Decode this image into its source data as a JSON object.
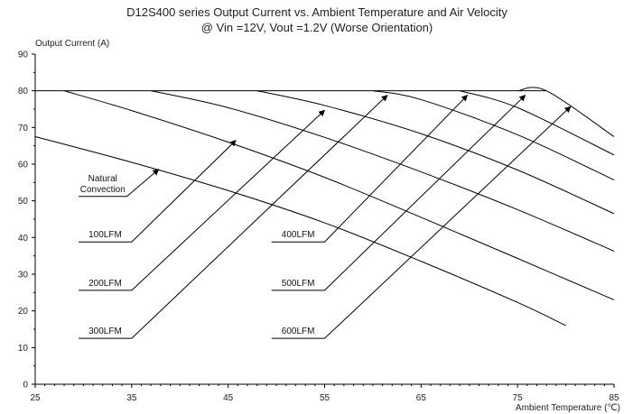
{
  "chart_data": {
    "type": "line",
    "title": "D12S400 series Output Current vs. Ambient Temperature and Air Velocity",
    "subtitle": "@ Vin =12V, Vout =1.2V (Worse Orientation)",
    "ylabel": "Output Current (A)",
    "xlabel": "Ambient Temperature (℃)",
    "xlim": [
      25,
      85
    ],
    "ylim": [
      0,
      90
    ],
    "xticks": [
      25,
      35,
      45,
      55,
      65,
      75,
      85
    ],
    "yticks": [
      0,
      10,
      20,
      30,
      40,
      50,
      60,
      70,
      80,
      90
    ],
    "grid": false,
    "series": [
      {
        "name": "Natural Convection",
        "x": [
          25,
          35,
          45,
          55,
          65,
          75,
          80
        ],
        "y": [
          67.5,
          60.5,
          52.8,
          44,
          33.5,
          22.3,
          16
        ]
      },
      {
        "name": "100LFM",
        "x": [
          28,
          35,
          45,
          55,
          65,
          75,
          85
        ],
        "y": [
          80,
          74.6,
          66,
          56.4,
          45.5,
          34.3,
          23
        ]
      },
      {
        "name": "200LFM",
        "x": [
          37,
          45,
          55,
          65,
          75,
          85
        ],
        "y": [
          80,
          75.4,
          67.3,
          57.9,
          47.6,
          36.3
        ]
      },
      {
        "name": "300LFM",
        "x": [
          48,
          55,
          65,
          75,
          85
        ],
        "y": [
          80,
          76,
          68.3,
          58.4,
          46.5
        ]
      },
      {
        "name": "400LFM",
        "x": [
          60,
          65,
          75,
          85
        ],
        "y": [
          80,
          77.6,
          68,
          55.7
        ]
      },
      {
        "name": "500LFM",
        "x": [
          69,
          75,
          85
        ],
        "y": [
          80,
          75.4,
          62.5
        ]
      },
      {
        "name": "600LFM",
        "x": [
          75,
          78,
          85
        ],
        "y": [
          80,
          80,
          67.5
        ]
      }
    ],
    "limit_line": {
      "x": [
        25,
        78
      ],
      "y": [
        80,
        80
      ]
    },
    "annotations": [
      {
        "label": "Natural Convection",
        "lines": [
          "Natural",
          "Convection"
        ],
        "leader": [
          [
            29.5,
            51.2
          ],
          [
            34.5,
            51.2
          ]
        ],
        "arrow_to": [
          37.8,
          58.6
        ]
      },
      {
        "label": "100LFM",
        "lines": [
          "100LFM"
        ],
        "leader": [
          [
            29.5,
            38.8
          ],
          [
            35,
            38.8
          ]
        ],
        "arrow_to": [
          45.8,
          66.5
        ]
      },
      {
        "label": "200LFM",
        "lines": [
          "200LFM"
        ],
        "leader": [
          [
            29.5,
            25.6
          ],
          [
            35,
            25.6
          ]
        ],
        "arrow_to": [
          55,
          74.7
        ]
      },
      {
        "label": "300LFM",
        "lines": [
          "300LFM"
        ],
        "leader": [
          [
            29.5,
            12.5
          ],
          [
            35,
            12.5
          ]
        ],
        "arrow_to": [
          61.5,
          78.8
        ]
      },
      {
        "label": "400LFM",
        "lines": [
          "400LFM"
        ],
        "leader": [
          [
            49.5,
            38.8
          ],
          [
            55,
            38.8
          ]
        ],
        "arrow_to": [
          69.8,
          78.8
        ]
      },
      {
        "label": "500LFM",
        "lines": [
          "500LFM"
        ],
        "leader": [
          [
            49.5,
            25.6
          ],
          [
            55,
            25.6
          ]
        ],
        "arrow_to": [
          75.8,
          78.8
        ]
      },
      {
        "label": "600LFM",
        "lines": [
          "600LFM"
        ],
        "leader": [
          [
            49.5,
            12.5
          ],
          [
            55,
            12.5
          ]
        ],
        "arrow_to": [
          80.5,
          75.7
        ]
      }
    ],
    "colors": {
      "line": "#000000",
      "text": "#222222",
      "background": "#ffffff"
    }
  }
}
